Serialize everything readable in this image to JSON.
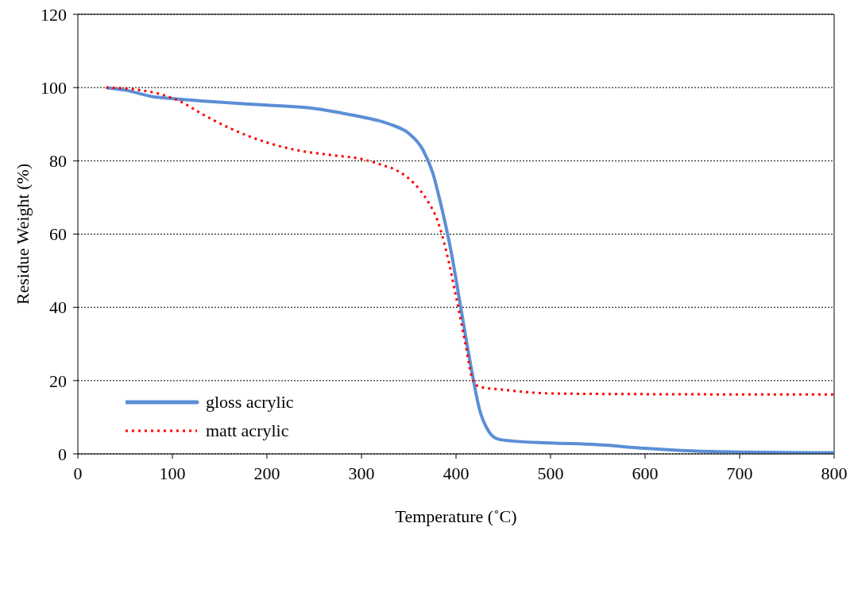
{
  "chart_data": {
    "type": "line",
    "xlabel": "Temperature (˚C)",
    "ylabel": "Residue Weight (%)",
    "xlim": [
      0,
      800
    ],
    "xticks": [
      0,
      100,
      200,
      300,
      400,
      500,
      600,
      700,
      800
    ],
    "ylim": [
      0,
      120
    ],
    "yticks": [
      0,
      20,
      40,
      60,
      80,
      100,
      120
    ],
    "grid": "y",
    "legend": "bottom left",
    "marker": "none",
    "series": [
      {
        "name": "gloss acrylic",
        "color": "#5b8fd6",
        "line_style": "solid",
        "x": [
          30,
          50,
          80,
          100,
          150,
          200,
          250,
          280,
          300,
          330,
          350,
          365,
          375,
          385,
          395,
          405,
          415,
          425,
          435,
          445,
          460,
          500,
          550,
          600,
          650,
          700,
          800
        ],
        "values": [
          100,
          99.3,
          97.5,
          97,
          96,
          95.2,
          94.3,
          93,
          92,
          90,
          87.5,
          83,
          77,
          67,
          55,
          40,
          25,
          12,
          6,
          4,
          3.5,
          3,
          2.5,
          1.5,
          0.8,
          0.5,
          0.3
        ]
      },
      {
        "name": "matt acrylic",
        "color": "#ff0000",
        "line_style": "dotted",
        "x": [
          30,
          60,
          90,
          110,
          130,
          160,
          200,
          230,
          270,
          300,
          320,
          340,
          355,
          370,
          380,
          390,
          400,
          410,
          418,
          425,
          450,
          500,
          600,
          800
        ],
        "values": [
          100,
          99.5,
          98,
          96,
          93,
          89,
          85,
          83,
          81.5,
          80.5,
          79,
          77,
          74,
          69,
          64,
          55,
          43,
          30,
          20,
          18.3,
          17.5,
          16.5,
          16.3,
          16.2
        ]
      }
    ]
  }
}
